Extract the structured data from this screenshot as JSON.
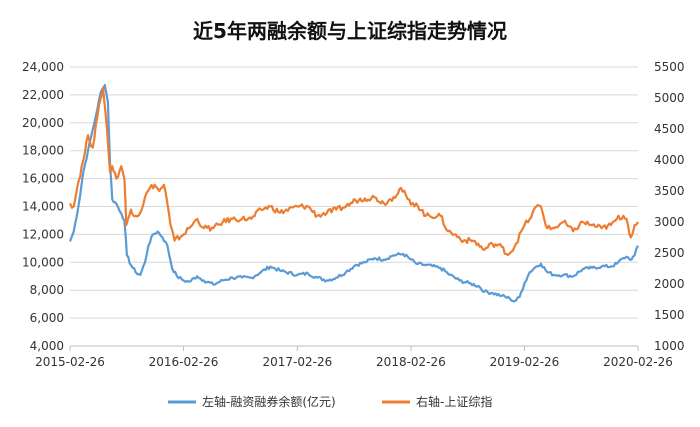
{
  "chart_data": {
    "type": "line",
    "title": "近5年两融余额与上证综指走势情况",
    "x_ticks": [
      "2015-02-26",
      "2016-02-26",
      "2017-02-26",
      "2018-02-26",
      "2019-02-26",
      "2020-02-26"
    ],
    "y_left": {
      "min": 4000,
      "max": 24000,
      "ticks": [
        "4,000",
        "6,000",
        "8,000",
        "10,000",
        "12,000",
        "14,000",
        "16,000",
        "18,000",
        "20,000",
        "22,000",
        "24,000"
      ]
    },
    "y_right": {
      "min": 1000,
      "max": 5500,
      "ticks": [
        "1000",
        "1500",
        "2000",
        "2500",
        "3000",
        "3500",
        "4000",
        "4500",
        "5000",
        "5500"
      ]
    },
    "grid": true,
    "legend_position": "bottom",
    "series": [
      {
        "name": "左轴-融资融券余额(亿元)",
        "axis": "left",
        "color": "#5B9BD5",
        "points": [
          [
            "2015-02-26",
            11500
          ],
          [
            "2015-03-10",
            12200
          ],
          [
            "2015-03-25",
            14000
          ],
          [
            "2015-04-10",
            16500
          ],
          [
            "2015-04-25",
            18000
          ],
          [
            "2015-05-10",
            19500
          ],
          [
            "2015-05-25",
            21000
          ],
          [
            "2015-06-05",
            22200
          ],
          [
            "2015-06-18",
            22700
          ],
          [
            "2015-06-28",
            21500
          ],
          [
            "2015-07-05",
            17000
          ],
          [
            "2015-07-12",
            14500
          ],
          [
            "2015-07-25",
            14200
          ],
          [
            "2015-08-10",
            13500
          ],
          [
            "2015-08-20",
            13000
          ],
          [
            "2015-08-28",
            10500
          ],
          [
            "2015-09-10",
            9800
          ],
          [
            "2015-09-25",
            9300
          ],
          [
            "2015-10-10",
            9100
          ],
          [
            "2015-10-25",
            10000
          ],
          [
            "2015-11-05",
            11200
          ],
          [
            "2015-11-20",
            12000
          ],
          [
            "2015-12-05",
            12200
          ],
          [
            "2015-12-20",
            11800
          ],
          [
            "2016-01-05",
            11200
          ],
          [
            "2016-01-20",
            9600
          ],
          [
            "2016-02-05",
            9000
          ],
          [
            "2016-02-26",
            8700
          ],
          [
            "2016-03-15",
            8600
          ],
          [
            "2016-04-10",
            9000
          ],
          [
            "2016-05-01",
            8700
          ],
          [
            "2016-06-01",
            8400
          ],
          [
            "2016-07-01",
            8700
          ],
          [
            "2016-08-01",
            8900
          ],
          [
            "2016-09-01",
            8900
          ],
          [
            "2016-10-01",
            8900
          ],
          [
            "2016-11-01",
            9300
          ],
          [
            "2016-12-01",
            9700
          ],
          [
            "2017-01-01",
            9400
          ],
          [
            "2017-02-26",
            9100
          ],
          [
            "2017-04-01",
            9200
          ],
          [
            "2017-05-01",
            8900
          ],
          [
            "2017-06-01",
            8700
          ],
          [
            "2017-07-01",
            8900
          ],
          [
            "2017-08-01",
            9300
          ],
          [
            "2017-09-01",
            9800
          ],
          [
            "2017-10-01",
            10000
          ],
          [
            "2017-11-01",
            10300
          ],
          [
            "2017-12-01",
            10200
          ],
          [
            "2018-01-01",
            10500
          ],
          [
            "2018-02-01",
            10600
          ],
          [
            "2018-02-26",
            10200
          ],
          [
            "2018-03-15",
            9900
          ],
          [
            "2018-04-15",
            9800
          ],
          [
            "2018-06-01",
            9600
          ],
          [
            "2018-07-01",
            9100
          ],
          [
            "2018-08-01",
            8700
          ],
          [
            "2018-09-01",
            8500
          ],
          [
            "2018-10-01",
            8300
          ],
          [
            "2018-10-20",
            7900
          ],
          [
            "2018-11-15",
            7800
          ],
          [
            "2018-12-15",
            7600
          ],
          [
            "2019-01-10",
            7400
          ],
          [
            "2019-01-25",
            7200
          ],
          [
            "2019-02-10",
            7500
          ],
          [
            "2019-02-26",
            8500
          ],
          [
            "2019-03-15",
            9300
          ],
          [
            "2019-04-05",
            9700
          ],
          [
            "2019-04-20",
            9900
          ],
          [
            "2019-05-10",
            9300
          ],
          [
            "2019-06-01",
            9100
          ],
          [
            "2019-07-01",
            9100
          ],
          [
            "2019-08-01",
            9000
          ],
          [
            "2019-09-01",
            9500
          ],
          [
            "2019-10-01",
            9600
          ],
          [
            "2019-11-01",
            9700
          ],
          [
            "2019-12-01",
            9700
          ],
          [
            "2019-12-20",
            9900
          ],
          [
            "2020-01-10",
            10300
          ],
          [
            "2020-01-20",
            10400
          ],
          [
            "2020-02-05",
            10200
          ],
          [
            "2020-02-15",
            10500
          ],
          [
            "2020-02-26",
            11200
          ]
        ]
      },
      {
        "name": "右轴-上证综指",
        "axis": "right",
        "color": "#ED7D31",
        "points": [
          [
            "2015-02-26",
            3300
          ],
          [
            "2015-03-10",
            3250
          ],
          [
            "2015-03-25",
            3650
          ],
          [
            "2015-04-10",
            4000
          ],
          [
            "2015-04-25",
            4400
          ],
          [
            "2015-05-10",
            4200
          ],
          [
            "2015-05-25",
            4700
          ],
          [
            "2015-06-05",
            5000
          ],
          [
            "2015-06-12",
            5170
          ],
          [
            "2015-06-25",
            4500
          ],
          [
            "2015-07-05",
            3800
          ],
          [
            "2015-07-12",
            3900
          ],
          [
            "2015-07-25",
            3700
          ],
          [
            "2015-08-10",
            3900
          ],
          [
            "2015-08-20",
            3700
          ],
          [
            "2015-08-26",
            2950
          ],
          [
            "2015-09-10",
            3200
          ],
          [
            "2015-09-25",
            3100
          ],
          [
            "2015-10-10",
            3150
          ],
          [
            "2015-10-25",
            3400
          ],
          [
            "2015-11-10",
            3550
          ],
          [
            "2015-11-25",
            3600
          ],
          [
            "2015-12-10",
            3500
          ],
          [
            "2015-12-25",
            3600
          ],
          [
            "2016-01-05",
            3300
          ],
          [
            "2016-01-15",
            2950
          ],
          [
            "2016-01-28",
            2700
          ],
          [
            "2016-02-26",
            2800
          ],
          [
            "2016-03-15",
            2900
          ],
          [
            "2016-04-10",
            3050
          ],
          [
            "2016-05-01",
            2900
          ],
          [
            "2016-06-01",
            2900
          ],
          [
            "2016-07-01",
            3000
          ],
          [
            "2016-08-01",
            3050
          ],
          [
            "2016-09-01",
            3050
          ],
          [
            "2016-10-01",
            3050
          ],
          [
            "2016-11-01",
            3200
          ],
          [
            "2016-12-01",
            3250
          ],
          [
            "2017-01-01",
            3150
          ],
          [
            "2017-02-26",
            3250
          ],
          [
            "2017-04-01",
            3250
          ],
          [
            "2017-05-01",
            3100
          ],
          [
            "2017-06-01",
            3150
          ],
          [
            "2017-07-01",
            3200
          ],
          [
            "2017-08-01",
            3250
          ],
          [
            "2017-09-01",
            3350
          ],
          [
            "2017-10-01",
            3380
          ],
          [
            "2017-11-01",
            3400
          ],
          [
            "2017-12-01",
            3300
          ],
          [
            "2018-01-01",
            3400
          ],
          [
            "2018-01-25",
            3550
          ],
          [
            "2018-02-26",
            3280
          ],
          [
            "2018-03-15",
            3300
          ],
          [
            "2018-04-15",
            3100
          ],
          [
            "2018-06-01",
            3100
          ],
          [
            "2018-06-25",
            2850
          ],
          [
            "2018-07-15",
            2800
          ],
          [
            "2018-08-15",
            2700
          ],
          [
            "2018-09-15",
            2700
          ],
          [
            "2018-10-20",
            2550
          ],
          [
            "2018-11-15",
            2650
          ],
          [
            "2018-12-15",
            2600
          ],
          [
            "2019-01-03",
            2470
          ],
          [
            "2019-01-25",
            2600
          ],
          [
            "2019-02-26",
            2950
          ],
          [
            "2019-03-15",
            3050
          ],
          [
            "2019-04-05",
            3250
          ],
          [
            "2019-04-20",
            3250
          ],
          [
            "2019-05-10",
            2900
          ],
          [
            "2019-06-01",
            2900
          ],
          [
            "2019-07-01",
            3000
          ],
          [
            "2019-08-01",
            2850
          ],
          [
            "2019-09-01",
            3000
          ],
          [
            "2019-10-01",
            2950
          ],
          [
            "2019-11-01",
            2900
          ],
          [
            "2019-12-01",
            2950
          ],
          [
            "2019-12-20",
            3050
          ],
          [
            "2020-01-10",
            3100
          ],
          [
            "2020-01-20",
            3050
          ],
          [
            "2020-02-03",
            2750
          ],
          [
            "2020-02-15",
            2950
          ],
          [
            "2020-02-26",
            3000
          ]
        ]
      }
    ]
  }
}
